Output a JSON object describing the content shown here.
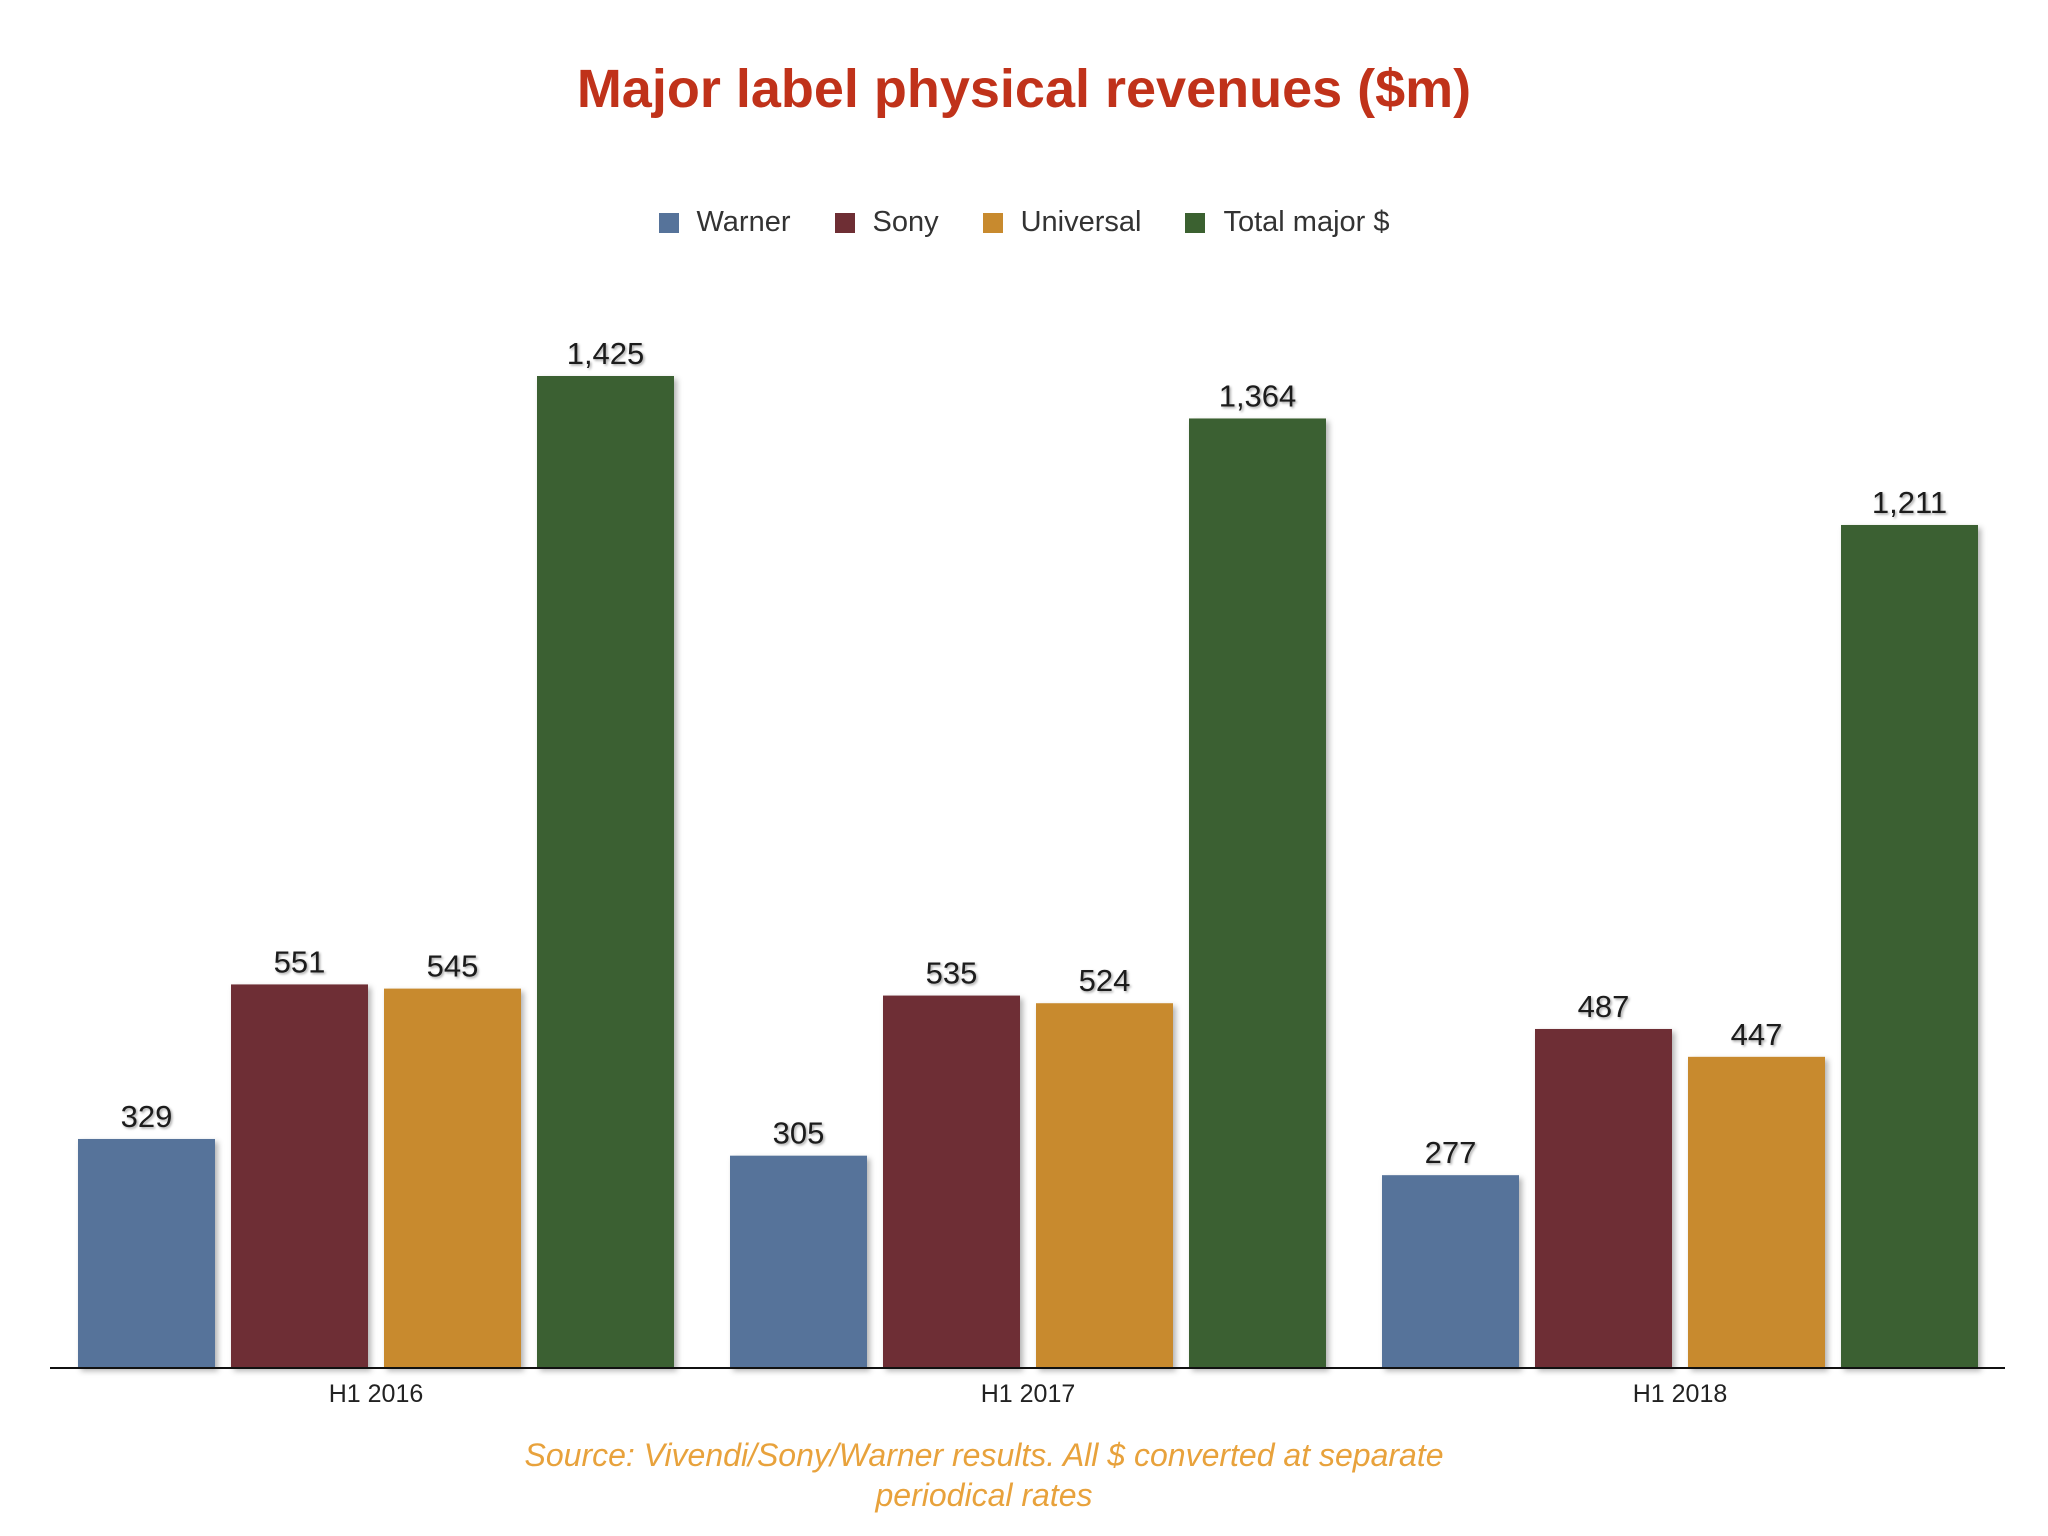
{
  "chart_data": {
    "type": "bar",
    "title": "Major label physical revenues ($m)",
    "categories": [
      "H1 2016",
      "H1 2017",
      "H1 2018"
    ],
    "series": [
      {
        "name": "Warner",
        "color": "#56739a",
        "values": [
          329,
          305,
          277
        ],
        "labels": [
          "329",
          "305",
          "277"
        ]
      },
      {
        "name": "Sony",
        "color": "#6e2e34",
        "values": [
          551,
          535,
          487
        ],
        "labels": [
          "551",
          "535",
          "487"
        ]
      },
      {
        "name": "Universal",
        "color": "#c88a2e",
        "values": [
          545,
          524,
          447
        ],
        "labels": [
          "545",
          "524",
          "447"
        ]
      },
      {
        "name": "Total major $",
        "color": "#3b6130",
        "values": [
          1425,
          1364,
          1211
        ],
        "labels": [
          "1,425",
          "1,364",
          "1,211"
        ]
      }
    ],
    "ylim": [
      0,
      1425
    ],
    "grid": false,
    "legend": "top-center",
    "xlabel": "",
    "ylabel": ""
  },
  "source_note": "Source: Vivendi/Sony/Warner results. All $ converted at separate periodical rates"
}
